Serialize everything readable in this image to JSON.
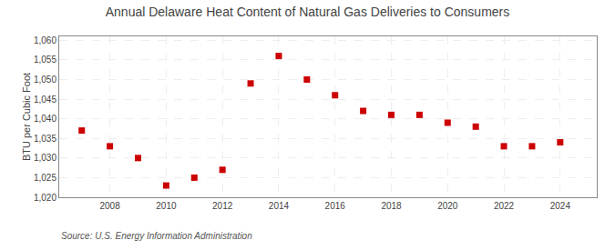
{
  "chart_data": {
    "type": "scatter",
    "title": "Annual Delaware Heat Content of Natural Gas Deliveries to Consumers",
    "y_label": "BTU per Cubic Foot",
    "annotations": [
      "Source: U.S. Energy Information Administration"
    ],
    "x": [
      2007,
      2008,
      2009,
      2010,
      2011,
      2012,
      2013,
      2014,
      2015,
      2016,
      2017,
      2018,
      2019,
      2020,
      2021,
      2022,
      2023,
      2024
    ],
    "values": [
      1037,
      1033,
      1030,
      1023,
      1025,
      1027,
      1049,
      1056,
      1050,
      1046,
      1042,
      1041,
      1041,
      1039,
      1038,
      1033,
      1033,
      1034
    ],
    "color": "#cc0000",
    "marker": "square",
    "xlim": [
      2006.2,
      2025.3
    ],
    "xticks": [
      2008,
      2010,
      2012,
      2014,
      2016,
      2018,
      2020,
      2022,
      2024
    ],
    "ylim": [
      1020,
      1061
    ],
    "yticks": [
      {
        "value": 1020,
        "label": "1,020"
      },
      {
        "value": 1025,
        "label": "1,025"
      },
      {
        "value": 1030,
        "label": "1,030"
      },
      {
        "value": 1035,
        "label": "1,035"
      },
      {
        "value": 1040,
        "label": "1,040"
      },
      {
        "value": 1045,
        "label": "1,045"
      },
      {
        "value": 1050,
        "label": "1,050"
      },
      {
        "value": 1055,
        "label": "1,055"
      },
      {
        "value": 1060,
        "label": "1,060"
      }
    ],
    "grid": true
  }
}
